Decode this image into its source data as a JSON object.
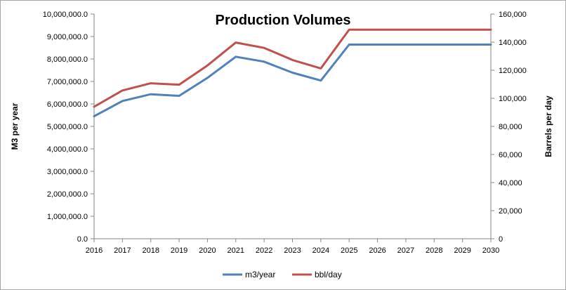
{
  "chart_data": {
    "type": "line",
    "title": "Production Volumes",
    "x": [
      "2016",
      "2017",
      "2018",
      "2019",
      "2020",
      "2021",
      "2022",
      "2023",
      "2024",
      "2025",
      "2026",
      "2027",
      "2028",
      "2029",
      "2030"
    ],
    "x_tick_labels": [
      "2016",
      "2017",
      "2018",
      "2019",
      "2020",
      "2021",
      "2022",
      "2023",
      "2024",
      "2025",
      "2026",
      "2027",
      "2028",
      "2029",
      "2030"
    ],
    "ylabel": "M3 per year",
    "y2label": "Barrels per day",
    "ylim": [
      0,
      10000000
    ],
    "y2lim": [
      0,
      160000
    ],
    "y_tick_labels": [
      "0.0",
      "1,000,000.0",
      "2,000,000.0",
      "3,000,000.0",
      "4,000,000.0",
      "5,000,000.0",
      "6,000,000.0",
      "7,000,000.0",
      "8,000,000.0",
      "9,000,000.0",
      "10,000,000.0"
    ],
    "y2_tick_labels": [
      "0",
      "20,000",
      "40,000",
      "60,000",
      "80,000",
      "100,000",
      "120,000",
      "140,000",
      "160,000"
    ],
    "grid": false,
    "legend_position": "bottom",
    "series": [
      {
        "name": "m3/year",
        "axis": "left",
        "color": "#4f81bd",
        "x": [
          "2016",
          "2017",
          "2018",
          "2019",
          "2020",
          "2021",
          "2022",
          "2023",
          "2024",
          "2025",
          "2030"
        ],
        "values": [
          5450000,
          6130000,
          6430000,
          6360000,
          7160000,
          8100000,
          7880000,
          7390000,
          7040000,
          8640000,
          8640000
        ]
      },
      {
        "name": "bbl/day",
        "axis": "right",
        "color": "#c0504d",
        "x": [
          "2016",
          "2017",
          "2018",
          "2019",
          "2020",
          "2021",
          "2022",
          "2023",
          "2024",
          "2025",
          "2030"
        ],
        "values": [
          94000,
          105600,
          110700,
          109700,
          123400,
          139700,
          135900,
          127300,
          121300,
          148900,
          148900
        ]
      }
    ]
  }
}
